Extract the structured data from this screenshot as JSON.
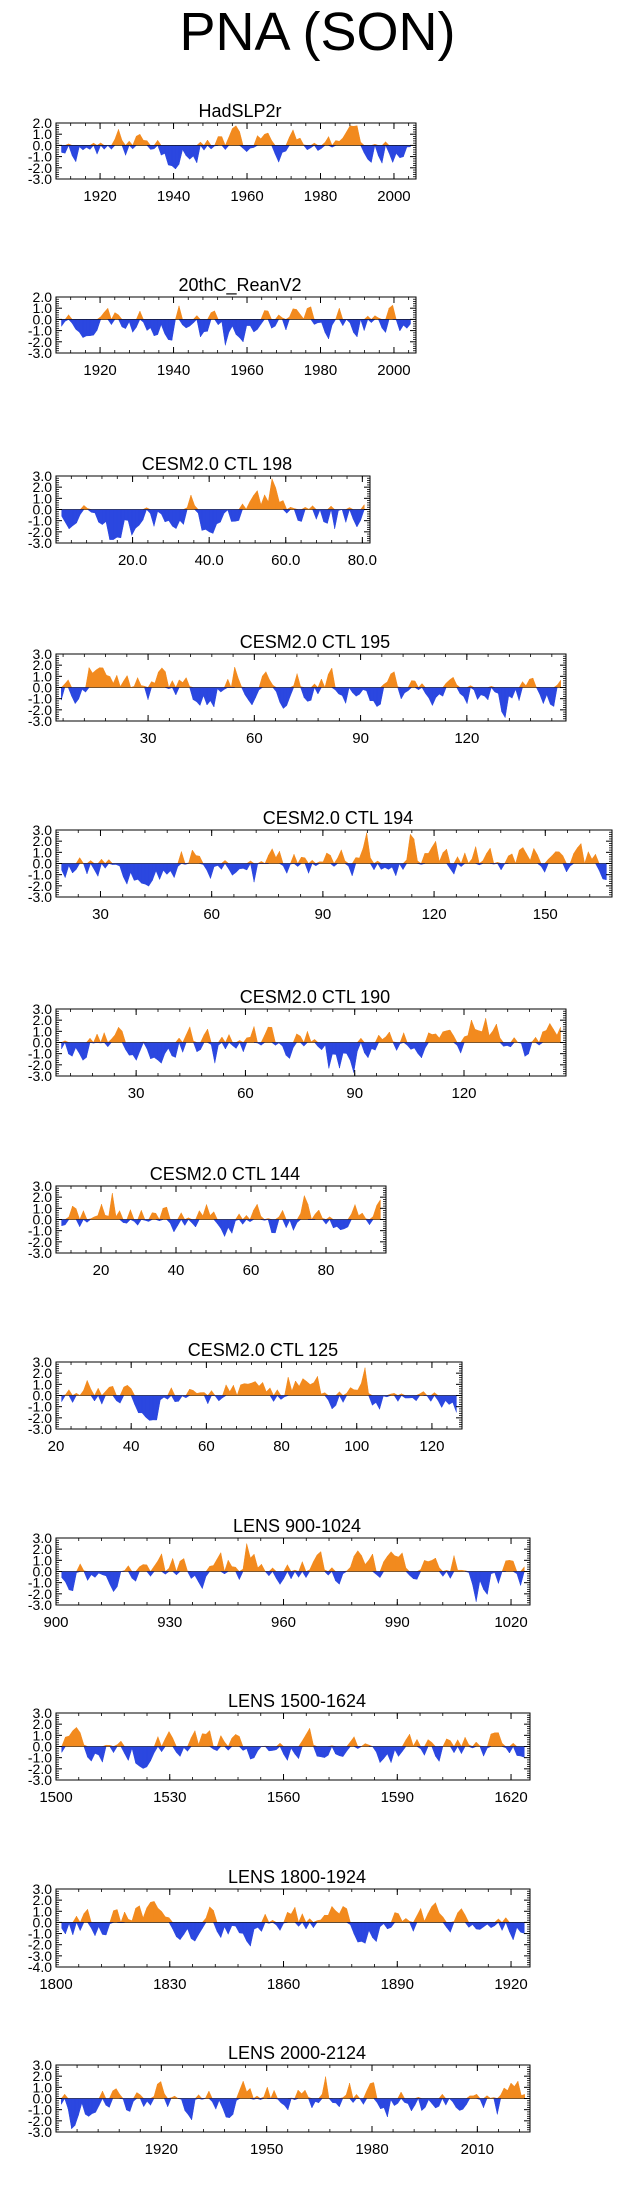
{
  "title": "PNA (SON)",
  "colors": {
    "positive": "#f28a1e",
    "negative": "#2b47e0",
    "frame": "#000000"
  },
  "chart_data": [
    {
      "type": "area",
      "title": "HadSLP2r",
      "xlim": [
        1908,
        2006
      ],
      "ylim": [
        -3.0,
        2.0
      ],
      "yticks": [
        "2.0",
        "1.0",
        "0.0",
        "-1.0",
        "-2.0",
        "-3.0"
      ],
      "xticks": [
        1920,
        1940,
        1960,
        1980,
        2000
      ],
      "xticklabels": [
        "1920",
        "1940",
        "1960",
        "1980",
        "2000"
      ],
      "seed": 11
    },
    {
      "type": "area",
      "title": "20thC_ReanV2",
      "xlim": [
        1908,
        2006
      ],
      "ylim": [
        -3.0,
        2.0
      ],
      "yticks": [
        "2.0",
        "1.0",
        "0.0",
        "-1.0",
        "-2.0",
        "-3.0"
      ],
      "xticks": [
        1920,
        1940,
        1960,
        1980,
        2000
      ],
      "xticklabels": [
        "1920",
        "1940",
        "1960",
        "1980",
        "2000"
      ],
      "seed": 23
    },
    {
      "type": "area",
      "title": "CESM2.0 CTL 198",
      "xlim": [
        0,
        82
      ],
      "ylim": [
        -3.0,
        3.0
      ],
      "yticks": [
        "3.0",
        "2.0",
        "1.0",
        "0.0",
        "-1.0",
        "-2.0",
        "-3.0"
      ],
      "xticks": [
        20,
        40,
        60,
        80
      ],
      "xticklabels": [
        "20.0",
        "40.0",
        "60.0",
        "80.0"
      ],
      "seed": 37
    },
    {
      "type": "area",
      "title": "CESM2.0 CTL 195",
      "xlim": [
        4,
        148
      ],
      "ylim": [
        -3.0,
        3.0
      ],
      "yticks": [
        "3.0",
        "2.0",
        "1.0",
        "0.0",
        "-1.0",
        "-2.0",
        "-3.0"
      ],
      "xticks": [
        30,
        60,
        90,
        120
      ],
      "xticklabels": [
        "30",
        "60",
        "90",
        "120"
      ],
      "seed": 41
    },
    {
      "type": "area",
      "title": "CESM2.0 CTL 194",
      "xlim": [
        18,
        168
      ],
      "ylim": [
        -3.0,
        3.0
      ],
      "yticks": [
        "3.0",
        "2.0",
        "1.0",
        "0.0",
        "-1.0",
        "-2.0",
        "-3.0"
      ],
      "xticks": [
        30,
        60,
        90,
        120,
        150
      ],
      "xticklabels": [
        "30",
        "60",
        "90",
        "120",
        "150"
      ],
      "seed": 53
    },
    {
      "type": "area",
      "title": "CESM2.0 CTL 190",
      "xlim": [
        8,
        148
      ],
      "ylim": [
        -3.0,
        3.0
      ],
      "yticks": [
        "3.0",
        "2.0",
        "1.0",
        "0.0",
        "-1.0",
        "-2.0",
        "-3.0"
      ],
      "xticks": [
        30,
        60,
        90,
        120
      ],
      "xticklabels": [
        "30",
        "60",
        "90",
        "120"
      ],
      "seed": 67
    },
    {
      "type": "area",
      "title": "CESM2.0 CTL 144",
      "xlim": [
        8,
        96
      ],
      "ylim": [
        -3.0,
        3.0
      ],
      "yticks": [
        "3.0",
        "2.0",
        "1.0",
        "0.0",
        "-1.0",
        "-2.0",
        "-3.0"
      ],
      "xticks": [
        20,
        40,
        60,
        80
      ],
      "xticklabels": [
        "20",
        "40",
        "60",
        "80"
      ],
      "seed": 71
    },
    {
      "type": "area",
      "title": "CESM2.0 CTL 125",
      "xlim": [
        20,
        128
      ],
      "ylim": [
        -3.0,
        3.0
      ],
      "yticks": [
        "3.0",
        "2.0",
        "1.0",
        "0.0",
        "-1.0",
        "-2.0",
        "-3.0"
      ],
      "xticks": [
        20,
        40,
        60,
        80,
        100,
        120
      ],
      "xticklabels": [
        "20",
        "40",
        "60",
        "80",
        "100",
        "120"
      ],
      "seed": 83
    },
    {
      "type": "area",
      "title": "LENS 900-1024",
      "xlim": [
        900,
        1025
      ],
      "ylim": [
        -3.0,
        3.0
      ],
      "yticks": [
        "3.0",
        "2.0",
        "1.0",
        "0.0",
        "-1.0",
        "-2.0",
        "-3.0"
      ],
      "xticks": [
        900,
        930,
        960,
        990,
        1020
      ],
      "xticklabels": [
        "900",
        "930",
        "960",
        "990",
        "1020"
      ],
      "seed": 97
    },
    {
      "type": "area",
      "title": "LENS 1500-1624",
      "xlim": [
        1500,
        1625
      ],
      "ylim": [
        -3.0,
        3.0
      ],
      "yticks": [
        "3.0",
        "2.0",
        "1.0",
        "0.0",
        "-1.0",
        "-2.0",
        "-3.0"
      ],
      "xticks": [
        1500,
        1530,
        1560,
        1590,
        1620
      ],
      "xticklabels": [
        "1500",
        "1530",
        "1560",
        "1590",
        "1620"
      ],
      "seed": 101
    },
    {
      "type": "area",
      "title": "LENS 1800-1924",
      "xlim": [
        1800,
        1925
      ],
      "ylim": [
        -4.0,
        3.0
      ],
      "yticks": [
        "3.0",
        "2.0",
        "1.0",
        "0.0",
        "-1.0",
        "-2.0",
        "-3.0",
        "-4.0"
      ],
      "xticks": [
        1800,
        1830,
        1860,
        1890,
        1920
      ],
      "xticklabels": [
        "1800",
        "1830",
        "1860",
        "1890",
        "1920"
      ],
      "seed": 113
    },
    {
      "type": "area",
      "title": "LENS 2000-2124",
      "xlim": [
        1890,
        2025
      ],
      "ylim": [
        -3.0,
        3.0
      ],
      "yticks": [
        "3.0",
        "2.0",
        "1.0",
        "0.0",
        "-1.0",
        "-2.0",
        "-3.0"
      ],
      "xticks": [
        1920,
        1950,
        1980,
        2010
      ],
      "xticklabels": [
        "1920",
        "1950",
        "1980",
        "2010"
      ],
      "seed": 127
    }
  ]
}
